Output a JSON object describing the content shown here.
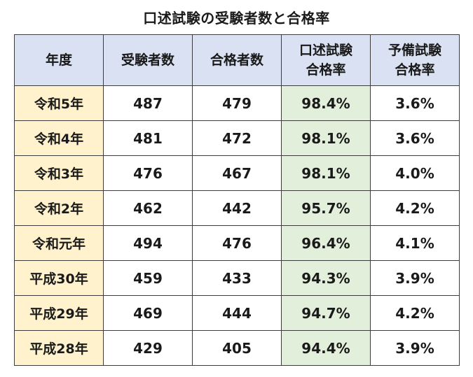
{
  "title": "口述試験の受験者数と合格率",
  "table": {
    "headers": {
      "year": "年度",
      "examinees": "受験者数",
      "passers": "合格者数",
      "oral_rate": [
        "口述試験",
        "合格率"
      ],
      "prelim_rate": [
        "予備試験",
        "合格率"
      ]
    },
    "rows": [
      {
        "year": "令和5年",
        "examinees": "487",
        "passers": "479",
        "oral_rate": "98.4%",
        "prelim_rate": "3.6%"
      },
      {
        "year": "令和4年",
        "examinees": "481",
        "passers": "472",
        "oral_rate": "98.1%",
        "prelim_rate": "3.6%"
      },
      {
        "year": "令和3年",
        "examinees": "476",
        "passers": "467",
        "oral_rate": "98.1%",
        "prelim_rate": "4.0%"
      },
      {
        "year": "令和2年",
        "examinees": "462",
        "passers": "442",
        "oral_rate": "95.7%",
        "prelim_rate": "4.2%"
      },
      {
        "year": "令和元年",
        "examinees": "494",
        "passers": "476",
        "oral_rate": "96.4%",
        "prelim_rate": "4.1%"
      },
      {
        "year": "平成30年",
        "examinees": "459",
        "passers": "433",
        "oral_rate": "94.3%",
        "prelim_rate": "3.9%"
      },
      {
        "year": "平成29年",
        "examinees": "469",
        "passers": "444",
        "oral_rate": "94.7%",
        "prelim_rate": "4.2%"
      },
      {
        "year": "平成28年",
        "examinees": "429",
        "passers": "405",
        "oral_rate": "94.4%",
        "prelim_rate": "3.9%"
      }
    ]
  },
  "colors": {
    "header_fill": "#d9e1f2",
    "year_fill": "#fff2cc",
    "oral_rate_fill": "#e2efda",
    "border": "#3c3c3c"
  }
}
